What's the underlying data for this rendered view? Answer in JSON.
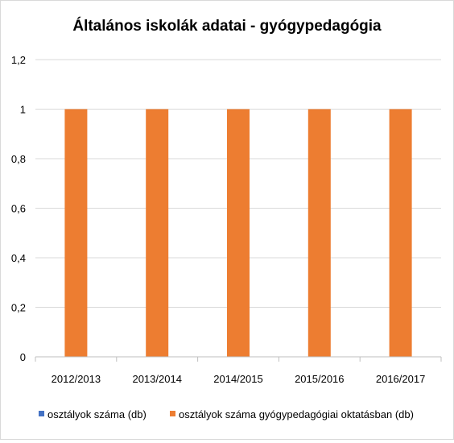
{
  "chart_data": {
    "type": "bar",
    "title": "Általános iskolák adatai - gyógypedagógia",
    "categories": [
      "2012/2013",
      "2013/2014",
      "2014/2015",
      "2015/2016",
      "2016/2017"
    ],
    "series": [
      {
        "name": "osztályok száma (db)",
        "color": "#4472c4",
        "values": [
          0,
          0,
          0,
          0,
          0
        ]
      },
      {
        "name": "osztályok száma gyógypedagógiai oktatásban (db)",
        "color": "#ed7d31",
        "values": [
          1,
          1,
          1,
          1,
          1
        ]
      }
    ],
    "y_ticks": [
      "0",
      "0,2",
      "0,4",
      "0,6",
      "0,8",
      "1",
      "1,2"
    ],
    "ylim": [
      0,
      1.2
    ],
    "grid": true,
    "legend_position": "bottom"
  }
}
